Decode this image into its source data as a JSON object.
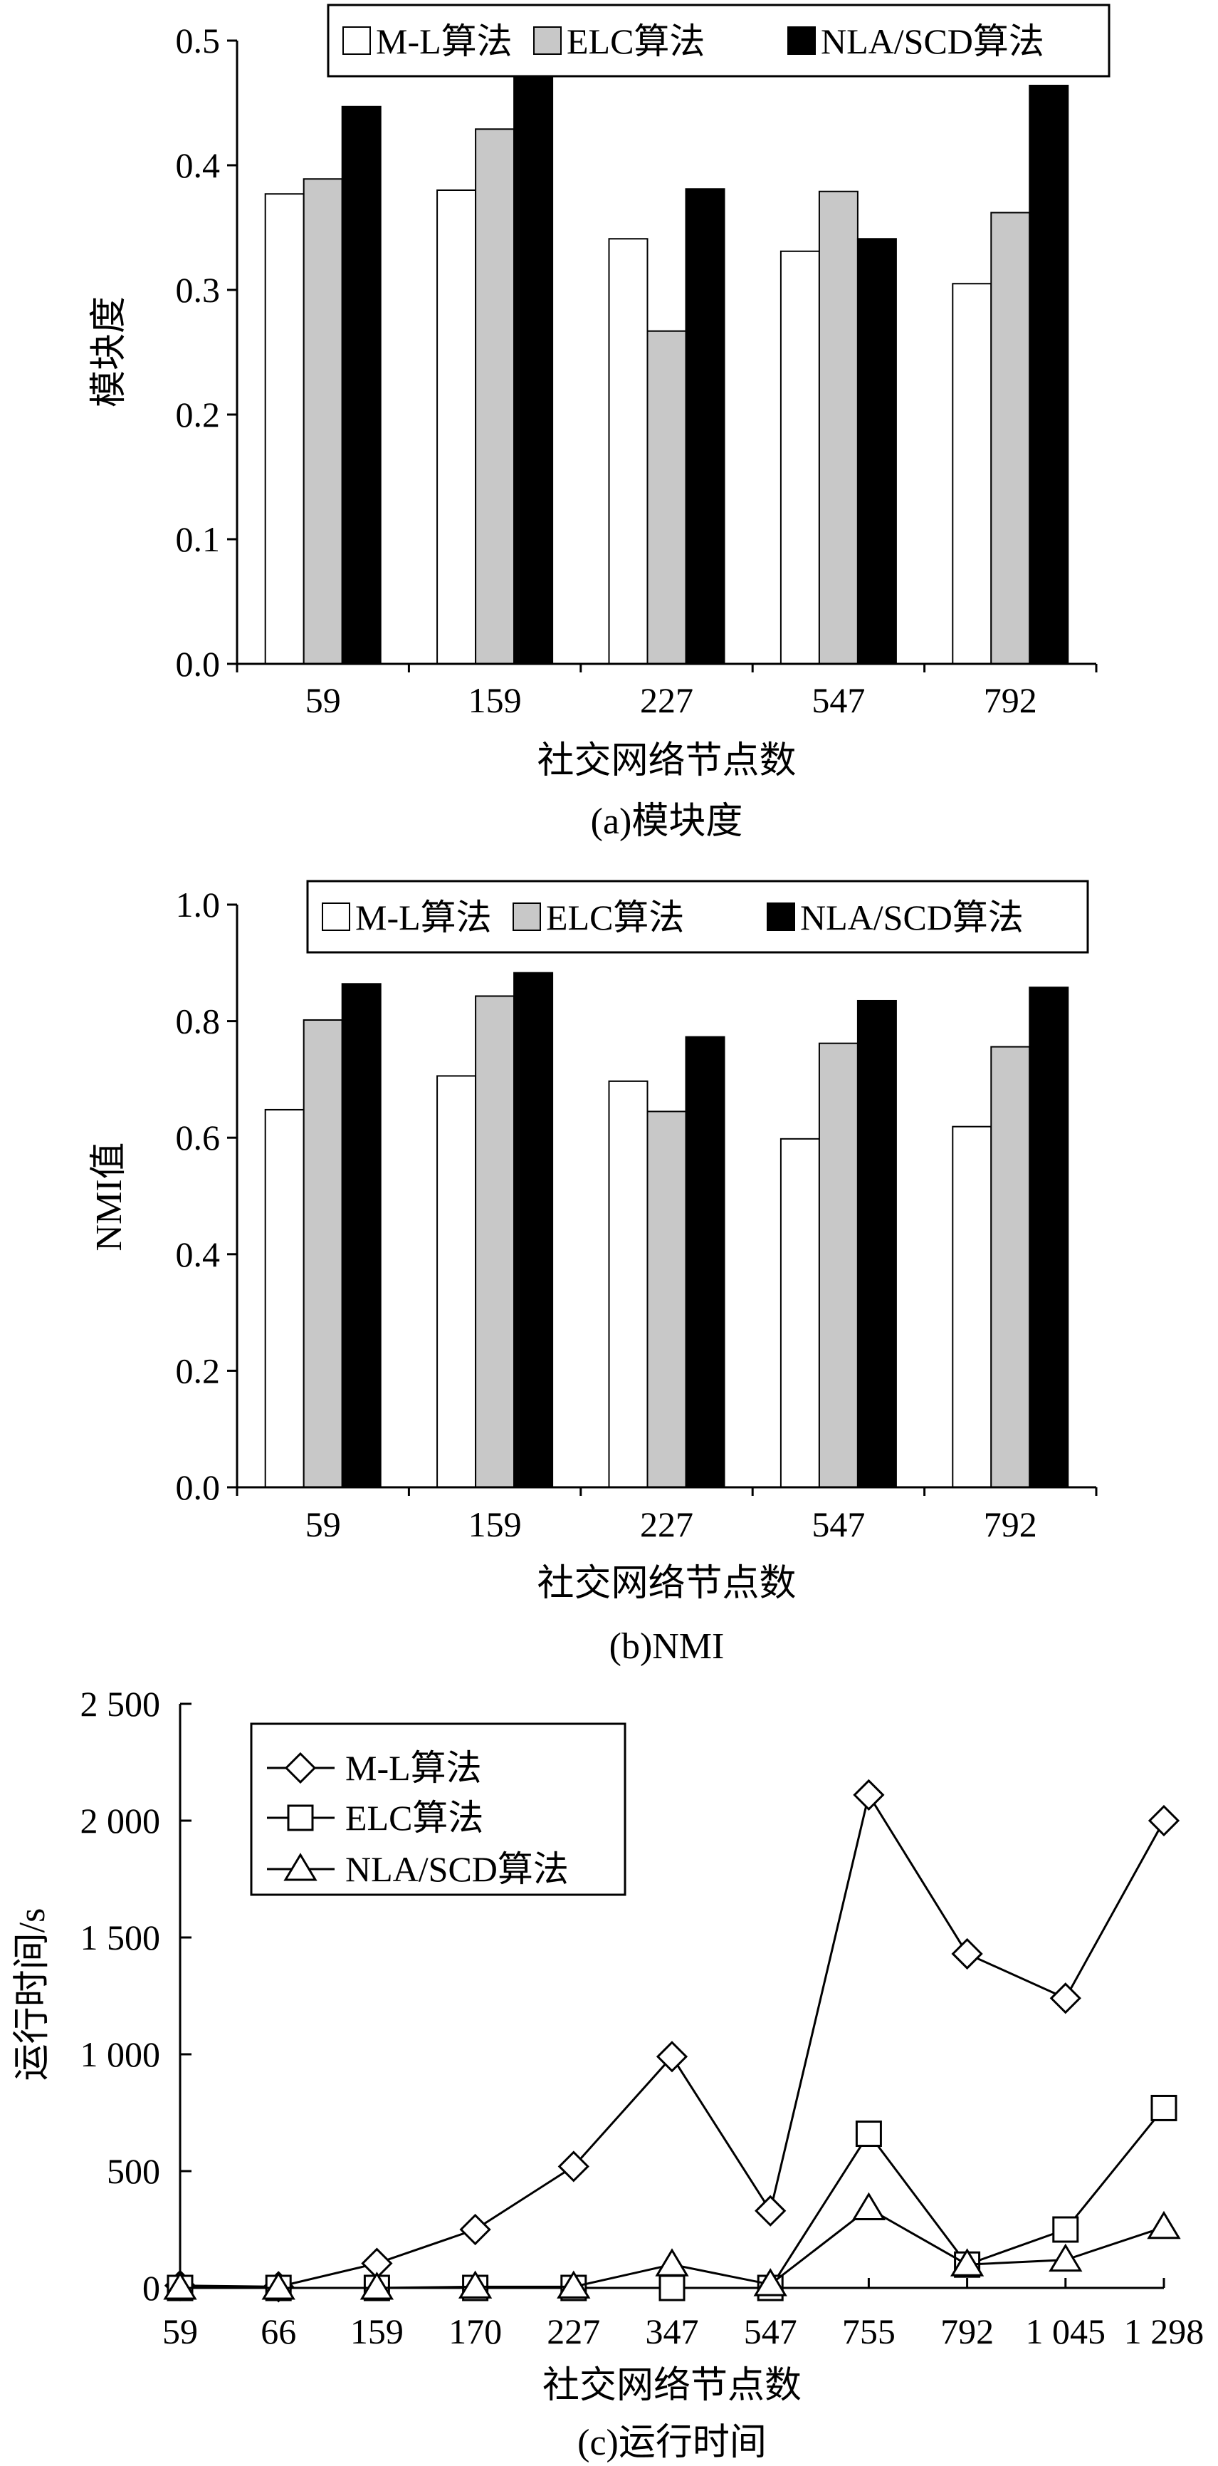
{
  "chart_data": [
    {
      "type": "bar",
      "categories": [
        "59",
        "159",
        "227",
        "547",
        "792"
      ],
      "series": [
        {
          "name": "M-L算法",
          "values": [
            0.377,
            0.38,
            0.341,
            0.331,
            0.305
          ],
          "color": "#ffffff"
        },
        {
          "name": "ELC算法",
          "values": [
            0.389,
            0.429,
            0.267,
            0.379,
            0.362
          ],
          "color": "#c8c8c8"
        },
        {
          "name": "NLA/SCD算法",
          "values": [
            0.447,
            0.482,
            0.381,
            0.341,
            0.464
          ],
          "color": "#000000"
        }
      ],
      "xlabel": "社交网络节点数",
      "ylabel": "模块度",
      "ylim": [
        0,
        0.5
      ],
      "yticks": [
        "0.0",
        "0.1",
        "0.2",
        "0.3",
        "0.4",
        "0.5"
      ],
      "caption": "(a)模块度",
      "legend": "top-right",
      "grid": false
    },
    {
      "type": "bar",
      "categories": [
        "59",
        "159",
        "227",
        "547",
        "792"
      ],
      "series": [
        {
          "name": "M-L算法",
          "values": [
            0.648,
            0.706,
            0.697,
            0.598,
            0.619
          ],
          "color": "#ffffff"
        },
        {
          "name": "ELC算法",
          "values": [
            0.802,
            0.843,
            0.645,
            0.762,
            0.756
          ],
          "color": "#c8c8c8"
        },
        {
          "name": "NLA/SCD算法",
          "values": [
            0.864,
            0.883,
            0.773,
            0.835,
            0.858
          ],
          "color": "#000000"
        }
      ],
      "xlabel": "社交网络节点数",
      "ylabel": "NMI值",
      "ylim": [
        0,
        1.0
      ],
      "yticks": [
        "0.0",
        "0.2",
        "0.4",
        "0.6",
        "0.8",
        "1.0"
      ],
      "caption": "(b)NMI",
      "legend": "top-right",
      "grid": false
    },
    {
      "type": "line",
      "x": [
        "59",
        "66",
        "159",
        "170",
        "227",
        "347",
        "547",
        "755",
        "792",
        "1 045",
        "1 298"
      ],
      "series": [
        {
          "name": "M-L算法",
          "marker": "diamond",
          "values": [
            10,
            5,
            105,
            250,
            520,
            990,
            330,
            2110,
            1430,
            1240,
            2000
          ]
        },
        {
          "name": "ELC算法",
          "marker": "square",
          "values": [
            0,
            0,
            0,
            0,
            0,
            0,
            0,
            660,
            100,
            250,
            770
          ]
        },
        {
          "name": "NLA/SCD算法",
          "marker": "triangle",
          "values": [
            0,
            0,
            0,
            5,
            5,
            100,
            15,
            340,
            100,
            120,
            260
          ]
        }
      ],
      "xlabel": "社交网络节点数",
      "ylabel": "运行时间/s",
      "ylim": [
        0,
        2500
      ],
      "yticks": [
        "0",
        "500",
        "1 000",
        "1 500",
        "2 000",
        "2 500"
      ],
      "caption": "(c)运行时间",
      "legend": "top-left",
      "grid": false
    }
  ]
}
